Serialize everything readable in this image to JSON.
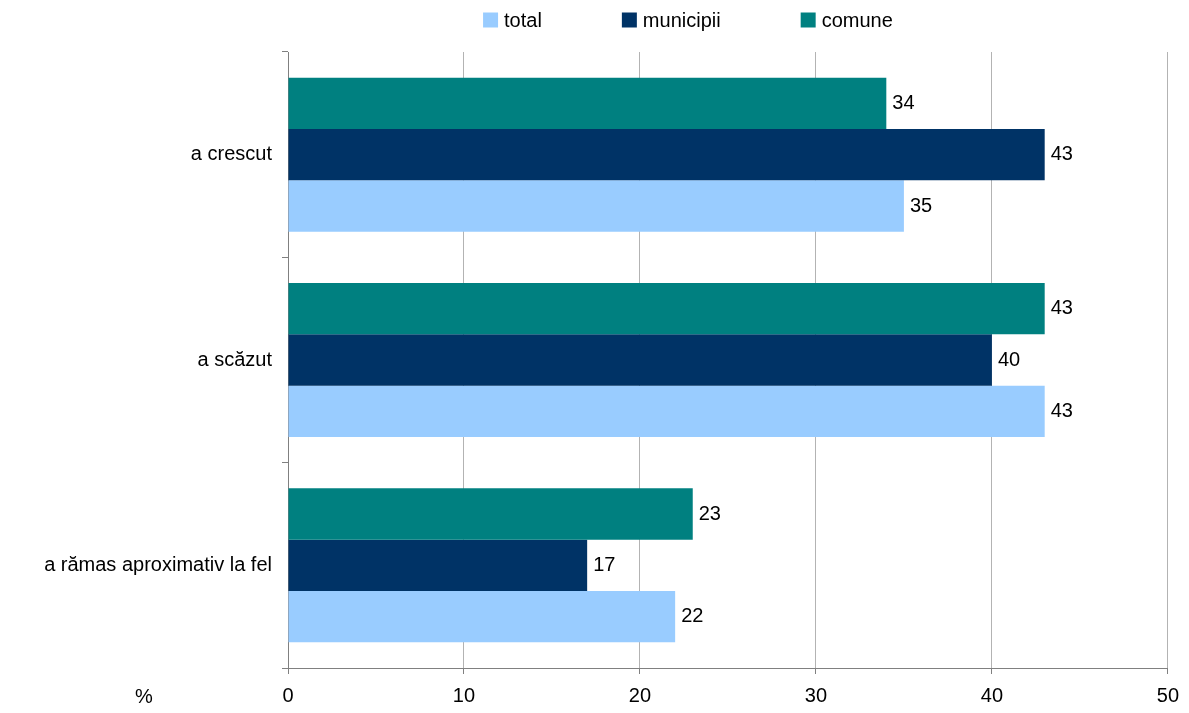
{
  "chart_data": {
    "type": "bar",
    "orientation": "horizontal",
    "categories": [
      "a crescut",
      "a scăzut",
      "a rămas aproximativ la fel"
    ],
    "series": [
      {
        "name": "total",
        "color": "#99ccff",
        "values": [
          35,
          43,
          22
        ]
      },
      {
        "name": "municipii",
        "color": "#003366",
        "values": [
          43,
          40,
          17
        ]
      },
      {
        "name": "comune",
        "color": "#008080",
        "values": [
          34,
          43,
          23
        ]
      }
    ],
    "xlabel": "%",
    "xlim": [
      0,
      50
    ],
    "xticks": [
      0,
      10,
      20,
      30,
      40,
      50
    ],
    "grid": "x",
    "legend": "top",
    "data_labels": true
  }
}
